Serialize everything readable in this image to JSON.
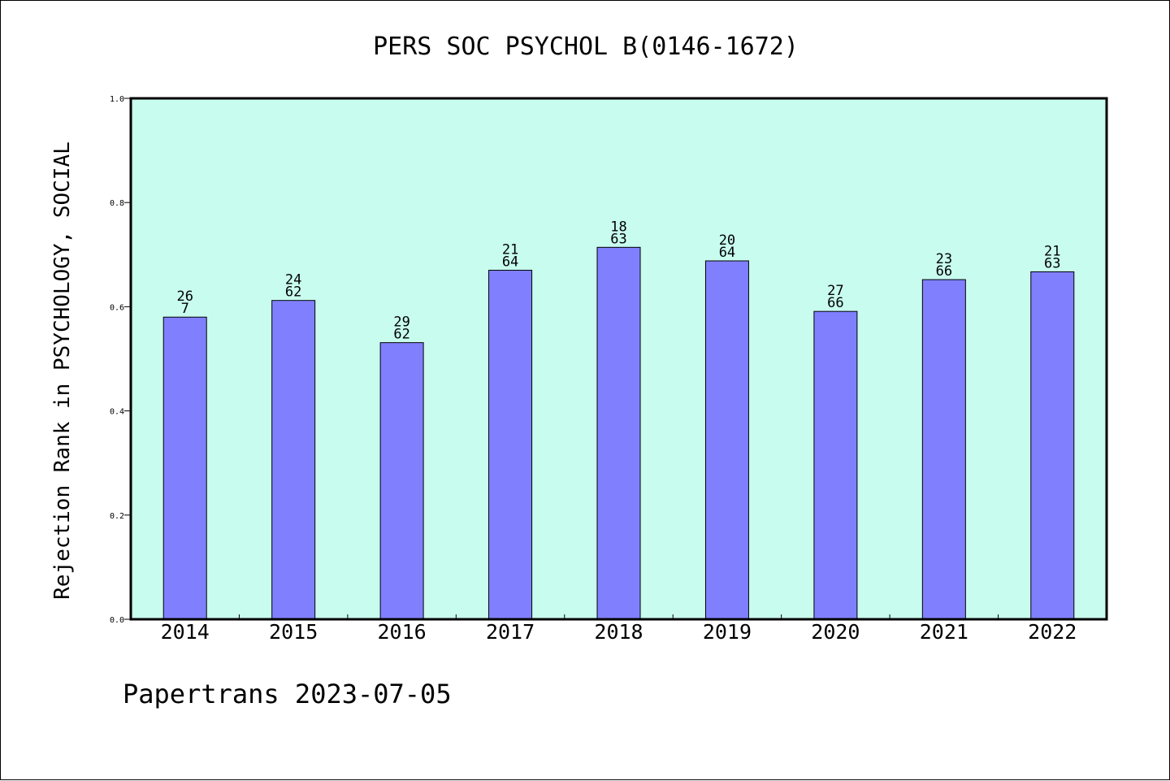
{
  "chart_data": {
    "type": "bar",
    "title": "PERS SOC PSYCHOL B(0146-1672)",
    "ylabel": "Rejection Rank in PSYCHOLOGY, SOCIAL",
    "xlabel": "",
    "ylim": [
      0,
      1.0
    ],
    "yticks": [
      "0.0",
      "0.2",
      "0.4",
      "0.6",
      "0.8",
      "1.0"
    ],
    "categories": [
      "2014",
      "2015",
      "2016",
      "2017",
      "2018",
      "2019",
      "2020",
      "2021",
      "2022"
    ],
    "values": [
      0.58,
      0.612,
      0.531,
      0.67,
      0.714,
      0.688,
      0.591,
      0.652,
      0.667
    ],
    "bar_labels": [
      [
        "26",
        "7"
      ],
      [
        "24",
        "62"
      ],
      [
        "29",
        "62"
      ],
      [
        "21",
        "64"
      ],
      [
        "18",
        "63"
      ],
      [
        "20",
        "64"
      ],
      [
        "27",
        "66"
      ],
      [
        "23",
        "66"
      ],
      [
        "21",
        "63"
      ]
    ],
    "grid": false,
    "colors": {
      "plot_background": "#c8fcee",
      "bar_fill": "#8080ff",
      "bar_stroke": "#000000"
    }
  },
  "footer": {
    "credit": "Papertrans 2023-07-05"
  }
}
